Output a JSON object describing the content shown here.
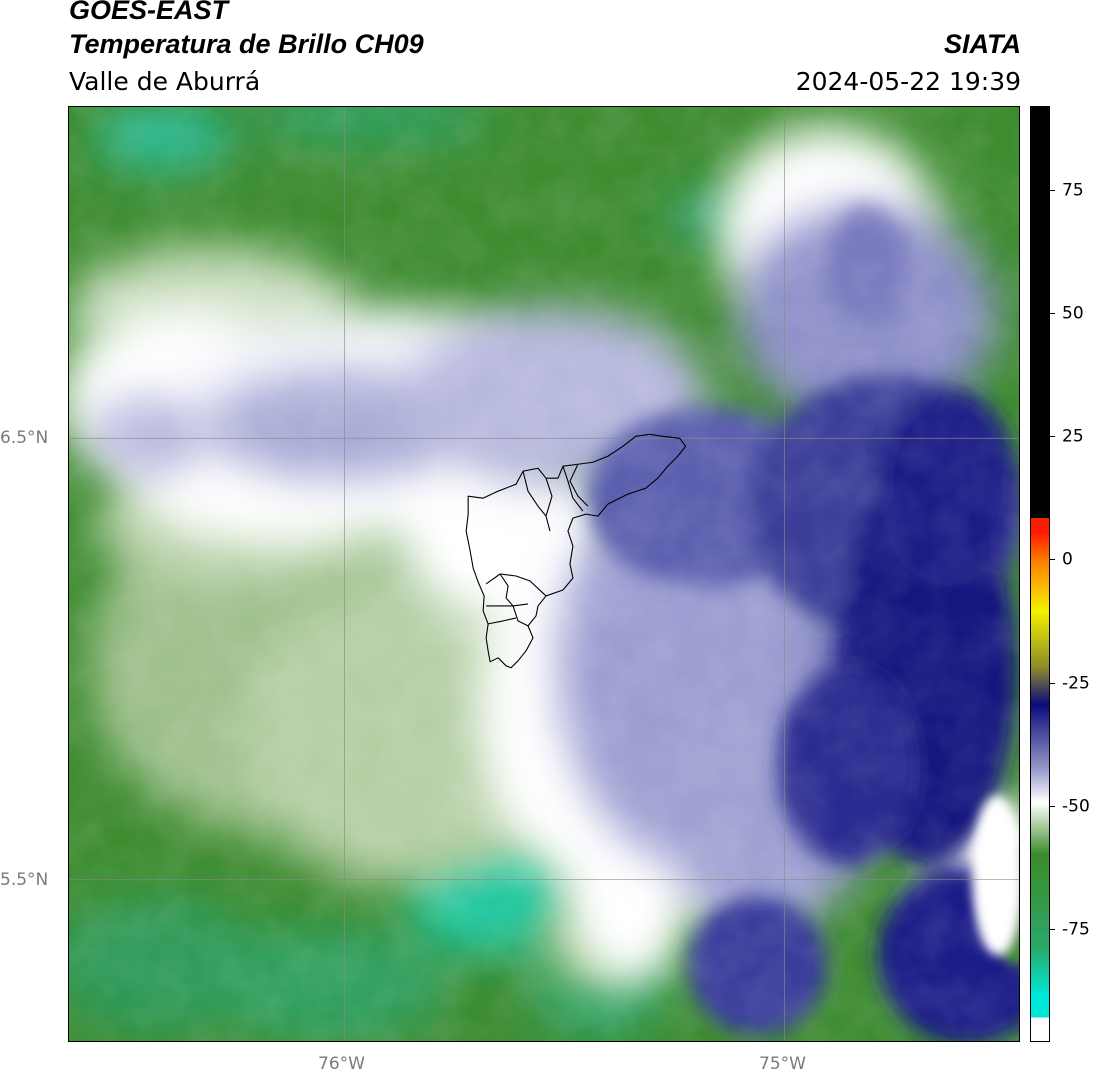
{
  "header": {
    "title_line1": "GOES-EAST",
    "title_line2": "Temperatura de Brillo CH09",
    "subtitle": "Valle de Aburrá",
    "org": "SIATA",
    "datetime": "2024-05-22 19:39"
  },
  "map": {
    "lat_labels": [
      "6.5°N",
      "5.5°N"
    ],
    "lon_labels": [
      "76°W",
      "75°W"
    ],
    "lat_lines": [
      6.5,
      5.5
    ],
    "lon_lines": [
      -76.0,
      -75.0
    ],
    "extent": {
      "lon_min": -76.62,
      "lon_max": -74.53,
      "lat_min": 5.13,
      "lat_max": 7.25
    },
    "region_outline": "Valle de Aburrá municipalities"
  },
  "colorbar": {
    "ticks": [
      "75",
      "50",
      "25",
      "0",
      "-25",
      "-50",
      "-75"
    ],
    "tick_values": [
      75,
      50,
      25,
      0,
      -25,
      -50,
      -75
    ],
    "range": [
      -95,
      90
    ],
    "colors": {
      "black": "#000000",
      "red": "#ff1a00",
      "orange": "#ff8800",
      "yellow": "#f5f000",
      "olive": "#8c8a2a",
      "navy": "#0a0a7a",
      "lavender": "#9a9ccc",
      "white": "#ffffff",
      "green": "#3c8a2a",
      "teal": "#2ba868",
      "cyan": "#00e6d6"
    }
  }
}
